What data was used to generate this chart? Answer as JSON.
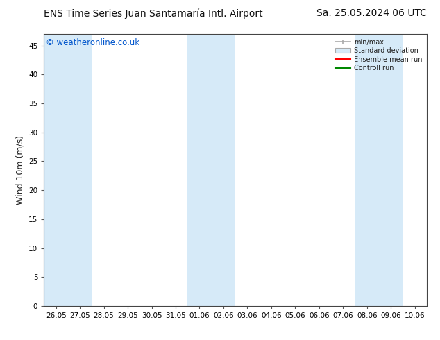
{
  "title_left": "ENS Time Series Juan Santamaría Intl. Airport",
  "title_right": "Sa. 25.05.2024 06 UTC",
  "ylabel": "Wind 10m (m/s)",
  "watermark": "© weatheronline.co.uk",
  "watermark_color": "#0055cc",
  "ylim": [
    0,
    47
  ],
  "yticks": [
    0,
    5,
    10,
    15,
    20,
    25,
    30,
    35,
    40,
    45
  ],
  "background_color": "#ffffff",
  "plot_bg_color": "#ffffff",
  "shaded_band_color": "#d6eaf8",
  "x_tick_labels": [
    "26.05",
    "27.05",
    "28.05",
    "29.05",
    "30.05",
    "31.05",
    "01.06",
    "02.06",
    "03.06",
    "04.06",
    "05.06",
    "06.06",
    "07.06",
    "08.06",
    "09.06",
    "10.06"
  ],
  "shaded_columns": [
    0,
    1,
    6,
    7,
    13,
    14
  ],
  "legend_labels": [
    "min/max",
    "Standard deviation",
    "Ensemble mean run",
    "Controll run"
  ],
  "legend_colors": [
    "#aaaaaa",
    "#bbccdd",
    "#ff0000",
    "#008800"
  ],
  "title_fontsize": 10,
  "tick_fontsize": 7.5,
  "ylabel_fontsize": 9,
  "watermark_fontsize": 8.5
}
